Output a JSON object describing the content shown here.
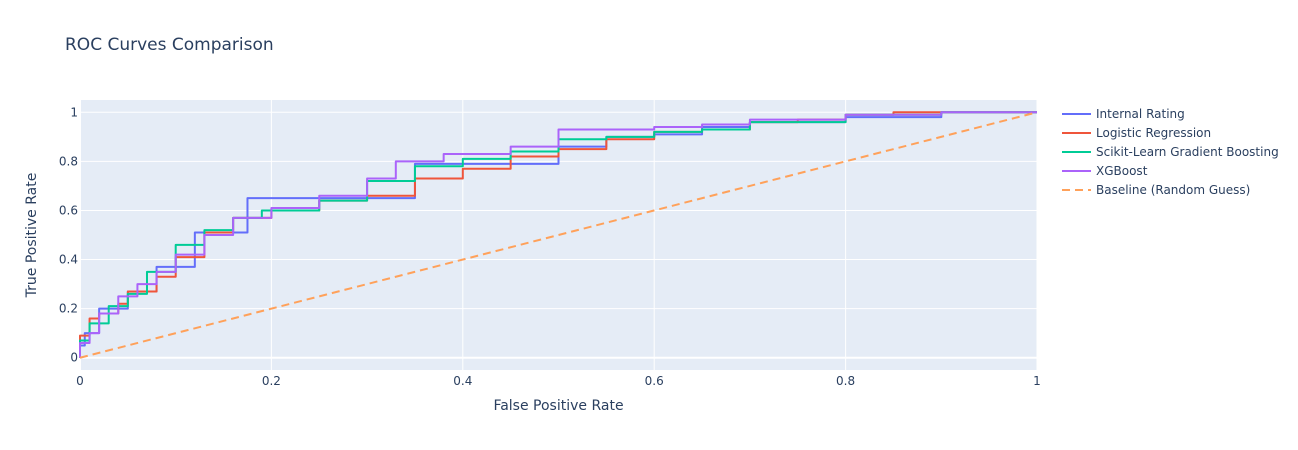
{
  "chart_data": {
    "type": "line",
    "title": "ROC Curves Comparison",
    "xlabel": "False Positive Rate",
    "ylabel": "True Positive Rate",
    "xlim": [
      0,
      1
    ],
    "ylim": [
      -0.05,
      1.05
    ],
    "x_ticks": [
      0,
      0.2,
      0.4,
      0.6,
      0.8,
      1
    ],
    "x_tick_labels": [
      "0",
      "0.2",
      "0.4",
      "0.6",
      "0.8",
      "1"
    ],
    "y_ticks": [
      0,
      0.2,
      0.4,
      0.6,
      0.8,
      1
    ],
    "y_tick_labels": [
      "0",
      "0.2",
      "0.4",
      "0.6",
      "0.8",
      "1"
    ],
    "grid": true,
    "legend_position": "right",
    "series": [
      {
        "name": "Internal Rating",
        "color": "#636efa",
        "dash": "solid",
        "points": [
          [
            0,
            0
          ],
          [
            0.005,
            0.05
          ],
          [
            0.02,
            0.1
          ],
          [
            0.05,
            0.2
          ],
          [
            0.08,
            0.27
          ],
          [
            0.12,
            0.37
          ],
          [
            0.175,
            0.51
          ],
          [
            0.35,
            0.65
          ],
          [
            0.5,
            0.79
          ],
          [
            0.55,
            0.86
          ],
          [
            0.6,
            0.9
          ],
          [
            0.65,
            0.91
          ],
          [
            0.7,
            0.94
          ],
          [
            0.8,
            0.96
          ],
          [
            0.9,
            0.98
          ],
          [
            1,
            1
          ]
        ]
      },
      {
        "name": "Logistic Regression",
        "color": "#ef553b",
        "dash": "solid",
        "points": [
          [
            0,
            0
          ],
          [
            0.01,
            0.09
          ],
          [
            0.02,
            0.16
          ],
          [
            0.04,
            0.18
          ],
          [
            0.05,
            0.22
          ],
          [
            0.08,
            0.27
          ],
          [
            0.1,
            0.33
          ],
          [
            0.13,
            0.41
          ],
          [
            0.16,
            0.51
          ],
          [
            0.2,
            0.57
          ],
          [
            0.25,
            0.6
          ],
          [
            0.3,
            0.64
          ],
          [
            0.35,
            0.66
          ],
          [
            0.4,
            0.73
          ],
          [
            0.45,
            0.77
          ],
          [
            0.5,
            0.82
          ],
          [
            0.55,
            0.85
          ],
          [
            0.6,
            0.89
          ],
          [
            0.65,
            0.92
          ],
          [
            0.7,
            0.93
          ],
          [
            0.75,
            0.96
          ],
          [
            0.8,
            0.97
          ],
          [
            0.85,
            0.99
          ],
          [
            0.9,
            1
          ],
          [
            1,
            1
          ]
        ]
      },
      {
        "name": "Scikit-Learn Gradient Boosting",
        "color": "#00cc96",
        "dash": "solid",
        "points": [
          [
            0,
            0
          ],
          [
            0.01,
            0.07
          ],
          [
            0.03,
            0.14
          ],
          [
            0.05,
            0.21
          ],
          [
            0.07,
            0.26
          ],
          [
            0.1,
            0.35
          ],
          [
            0.13,
            0.46
          ],
          [
            0.16,
            0.52
          ],
          [
            0.19,
            0.57
          ],
          [
            0.25,
            0.6
          ],
          [
            0.3,
            0.64
          ],
          [
            0.35,
            0.72
          ],
          [
            0.4,
            0.78
          ],
          [
            0.45,
            0.81
          ],
          [
            0.5,
            0.84
          ],
          [
            0.55,
            0.89
          ],
          [
            0.6,
            0.9
          ],
          [
            0.65,
            0.92
          ],
          [
            0.7,
            0.93
          ],
          [
            0.8,
            0.96
          ],
          [
            0.9,
            0.99
          ],
          [
            0.95,
            1
          ],
          [
            1,
            1
          ]
        ]
      },
      {
        "name": "XGBoost",
        "color": "#ab63fa",
        "dash": "solid",
        "points": [
          [
            0,
            0
          ],
          [
            0.01,
            0.06
          ],
          [
            0.02,
            0.1
          ],
          [
            0.04,
            0.18
          ],
          [
            0.06,
            0.25
          ],
          [
            0.08,
            0.3
          ],
          [
            0.1,
            0.35
          ],
          [
            0.13,
            0.42
          ],
          [
            0.16,
            0.5
          ],
          [
            0.2,
            0.57
          ],
          [
            0.25,
            0.61
          ],
          [
            0.3,
            0.66
          ],
          [
            0.33,
            0.73
          ],
          [
            0.38,
            0.8
          ],
          [
            0.45,
            0.83
          ],
          [
            0.5,
            0.86
          ],
          [
            0.55,
            0.93
          ],
          [
            0.6,
            0.93
          ],
          [
            0.65,
            0.94
          ],
          [
            0.7,
            0.95
          ],
          [
            0.8,
            0.97
          ],
          [
            0.9,
            0.99
          ],
          [
            1,
            1
          ]
        ]
      },
      {
        "name": "Baseline (Random Guess)",
        "color": "#ffa15a",
        "dash": "dash",
        "points": [
          [
            0,
            0
          ],
          [
            1,
            1
          ]
        ]
      }
    ]
  }
}
